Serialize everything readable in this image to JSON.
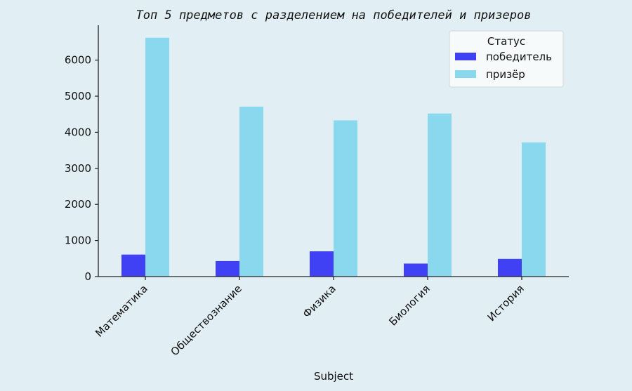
{
  "chart_data": {
    "type": "bar",
    "title": "Топ 5 предметов с разделением на победителей и призеров",
    "xlabel": "Subject",
    "ylabel": "",
    "categories": [
      "Математика",
      "Обществознание",
      "Физика",
      "Биология",
      "История"
    ],
    "series": [
      {
        "name": "победитель",
        "color": "#4040f5",
        "values": [
          610,
          430,
          700,
          360,
          490
        ]
      },
      {
        "name": "призёр",
        "color": "#8ad8ee",
        "values": [
          6620,
          4710,
          4330,
          4520,
          3720
        ]
      }
    ],
    "ylim": [
      0,
      7000
    ],
    "yticks": [
      0,
      1000,
      2000,
      3000,
      4000,
      5000,
      6000
    ],
    "grid": false,
    "legend": {
      "title": "Статус",
      "placement": "top-right"
    },
    "colors": {
      "background": "#e1eff4",
      "axis": "#222222",
      "legend_bg": "#f7fafb"
    }
  }
}
